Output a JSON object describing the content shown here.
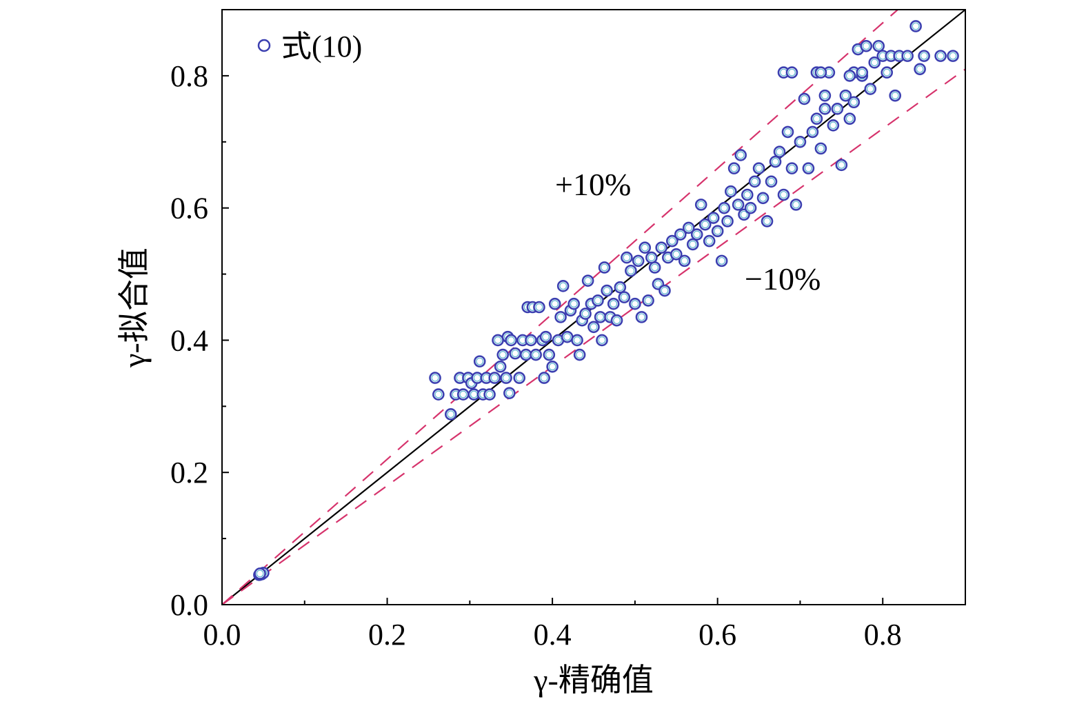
{
  "colors": {
    "marker_edge": "#3b3fb0",
    "marker_inner": "#42a6c8",
    "reference_line": "#000000",
    "band_lines": "#d6336c",
    "axis": "#000000",
    "background": "#ffffff"
  },
  "chart_data": {
    "type": "scatter",
    "xlabel": "γ-精确值",
    "ylabel": "γ-拟合值",
    "xlim": [
      0,
      0.9
    ],
    "ylim": [
      0,
      0.9
    ],
    "xticks": [
      0.0,
      0.2,
      0.4,
      0.6,
      0.8
    ],
    "yticks": [
      0.0,
      0.2,
      0.4,
      0.6,
      0.8
    ],
    "xtick_labels": [
      "0.0",
      "0.2",
      "0.4",
      "0.6",
      "0.8"
    ],
    "ytick_labels": [
      "0.0",
      "0.2",
      "0.4",
      "0.6",
      "0.8"
    ],
    "minor_ticks": true,
    "grid": false,
    "legend": {
      "position": "top-left",
      "entries": [
        {
          "label": "式(10)",
          "marker": "open-circle"
        }
      ]
    },
    "reference_lines": [
      {
        "label": "",
        "style": "solid",
        "slope": 1.0
      },
      {
        "label": "+10%",
        "style": "dashed",
        "slope": 1.1
      },
      {
        "label": "−10%",
        "style": "dashed",
        "slope": 0.9
      }
    ],
    "annotations": [
      {
        "text": "+10%",
        "x": 0.45,
        "y": 0.64
      },
      {
        "text": "−10%",
        "x": 0.68,
        "y": 0.49
      }
    ],
    "series": [
      {
        "name": "式(10)",
        "points": [
          [
            0.045,
            0.045
          ],
          [
            0.048,
            0.046
          ],
          [
            0.05,
            0.048
          ],
          [
            0.046,
            0.047
          ],
          [
            0.258,
            0.343
          ],
          [
            0.262,
            0.318
          ],
          [
            0.277,
            0.288
          ],
          [
            0.283,
            0.318
          ],
          [
            0.288,
            0.343
          ],
          [
            0.292,
            0.318
          ],
          [
            0.298,
            0.343
          ],
          [
            0.302,
            0.335
          ],
          [
            0.305,
            0.318
          ],
          [
            0.309,
            0.343
          ],
          [
            0.312,
            0.368
          ],
          [
            0.316,
            0.318
          ],
          [
            0.32,
            0.343
          ],
          [
            0.324,
            0.318
          ],
          [
            0.33,
            0.343
          ],
          [
            0.334,
            0.4
          ],
          [
            0.337,
            0.36
          ],
          [
            0.34,
            0.378
          ],
          [
            0.344,
            0.343
          ],
          [
            0.346,
            0.405
          ],
          [
            0.348,
            0.32
          ],
          [
            0.35,
            0.4
          ],
          [
            0.355,
            0.38
          ],
          [
            0.36,
            0.343
          ],
          [
            0.364,
            0.4
          ],
          [
            0.368,
            0.378
          ],
          [
            0.37,
            0.45
          ],
          [
            0.374,
            0.4
          ],
          [
            0.376,
            0.45
          ],
          [
            0.38,
            0.378
          ],
          [
            0.384,
            0.45
          ],
          [
            0.388,
            0.4
          ],
          [
            0.39,
            0.343
          ],
          [
            0.392,
            0.405
          ],
          [
            0.396,
            0.378
          ],
          [
            0.4,
            0.36
          ],
          [
            0.403,
            0.455
          ],
          [
            0.407,
            0.4
          ],
          [
            0.41,
            0.435
          ],
          [
            0.413,
            0.482
          ],
          [
            0.418,
            0.405
          ],
          [
            0.422,
            0.445
          ],
          [
            0.426,
            0.455
          ],
          [
            0.43,
            0.4
          ],
          [
            0.433,
            0.378
          ],
          [
            0.436,
            0.43
          ],
          [
            0.44,
            0.44
          ],
          [
            0.443,
            0.49
          ],
          [
            0.447,
            0.455
          ],
          [
            0.45,
            0.42
          ],
          [
            0.455,
            0.46
          ],
          [
            0.458,
            0.435
          ],
          [
            0.46,
            0.4
          ],
          [
            0.463,
            0.51
          ],
          [
            0.466,
            0.475
          ],
          [
            0.47,
            0.435
          ],
          [
            0.474,
            0.455
          ],
          [
            0.478,
            0.43
          ],
          [
            0.482,
            0.48
          ],
          [
            0.487,
            0.465
          ],
          [
            0.49,
            0.525
          ],
          [
            0.495,
            0.505
          ],
          [
            0.5,
            0.455
          ],
          [
            0.504,
            0.52
          ],
          [
            0.508,
            0.435
          ],
          [
            0.512,
            0.54
          ],
          [
            0.516,
            0.46
          ],
          [
            0.52,
            0.525
          ],
          [
            0.524,
            0.51
          ],
          [
            0.528,
            0.485
          ],
          [
            0.532,
            0.54
          ],
          [
            0.536,
            0.475
          ],
          [
            0.54,
            0.525
          ],
          [
            0.545,
            0.55
          ],
          [
            0.55,
            0.53
          ],
          [
            0.555,
            0.56
          ],
          [
            0.56,
            0.52
          ],
          [
            0.565,
            0.57
          ],
          [
            0.57,
            0.545
          ],
          [
            0.575,
            0.56
          ],
          [
            0.58,
            0.605
          ],
          [
            0.585,
            0.575
          ],
          [
            0.59,
            0.55
          ],
          [
            0.595,
            0.585
          ],
          [
            0.6,
            0.565
          ],
          [
            0.605,
            0.52
          ],
          [
            0.608,
            0.6
          ],
          [
            0.612,
            0.58
          ],
          [
            0.616,
            0.625
          ],
          [
            0.62,
            0.66
          ],
          [
            0.625,
            0.605
          ],
          [
            0.628,
            0.68
          ],
          [
            0.632,
            0.59
          ],
          [
            0.636,
            0.62
          ],
          [
            0.64,
            0.6
          ],
          [
            0.645,
            0.64
          ],
          [
            0.65,
            0.66
          ],
          [
            0.655,
            0.615
          ],
          [
            0.66,
            0.58
          ],
          [
            0.665,
            0.64
          ],
          [
            0.67,
            0.67
          ],
          [
            0.675,
            0.685
          ],
          [
            0.68,
            0.62
          ],
          [
            0.685,
            0.715
          ],
          [
            0.69,
            0.66
          ],
          [
            0.695,
            0.605
          ],
          [
            0.7,
            0.7
          ],
          [
            0.705,
            0.765
          ],
          [
            0.71,
            0.66
          ],
          [
            0.715,
            0.715
          ],
          [
            0.72,
            0.735
          ],
          [
            0.725,
            0.69
          ],
          [
            0.73,
            0.75
          ],
          [
            0.735,
            0.805
          ],
          [
            0.74,
            0.725
          ],
          [
            0.745,
            0.75
          ],
          [
            0.75,
            0.665
          ],
          [
            0.755,
            0.77
          ],
          [
            0.76,
            0.735
          ],
          [
            0.765,
            0.805
          ],
          [
            0.77,
            0.84
          ],
          [
            0.775,
            0.8
          ],
          [
            0.78,
            0.845
          ],
          [
            0.785,
            0.78
          ],
          [
            0.79,
            0.82
          ],
          [
            0.795,
            0.845
          ],
          [
            0.8,
            0.83
          ],
          [
            0.805,
            0.805
          ],
          [
            0.81,
            0.83
          ],
          [
            0.815,
            0.77
          ],
          [
            0.82,
            0.83
          ],
          [
            0.83,
            0.83
          ],
          [
            0.84,
            0.875
          ],
          [
            0.845,
            0.81
          ],
          [
            0.85,
            0.83
          ],
          [
            0.87,
            0.83
          ],
          [
            0.885,
            0.83
          ],
          [
            0.68,
            0.805
          ],
          [
            0.69,
            0.805
          ],
          [
            0.72,
            0.805
          ],
          [
            0.725,
            0.805
          ],
          [
            0.73,
            0.77
          ],
          [
            0.76,
            0.8
          ],
          [
            0.765,
            0.76
          ],
          [
            0.775,
            0.805
          ]
        ]
      }
    ]
  }
}
